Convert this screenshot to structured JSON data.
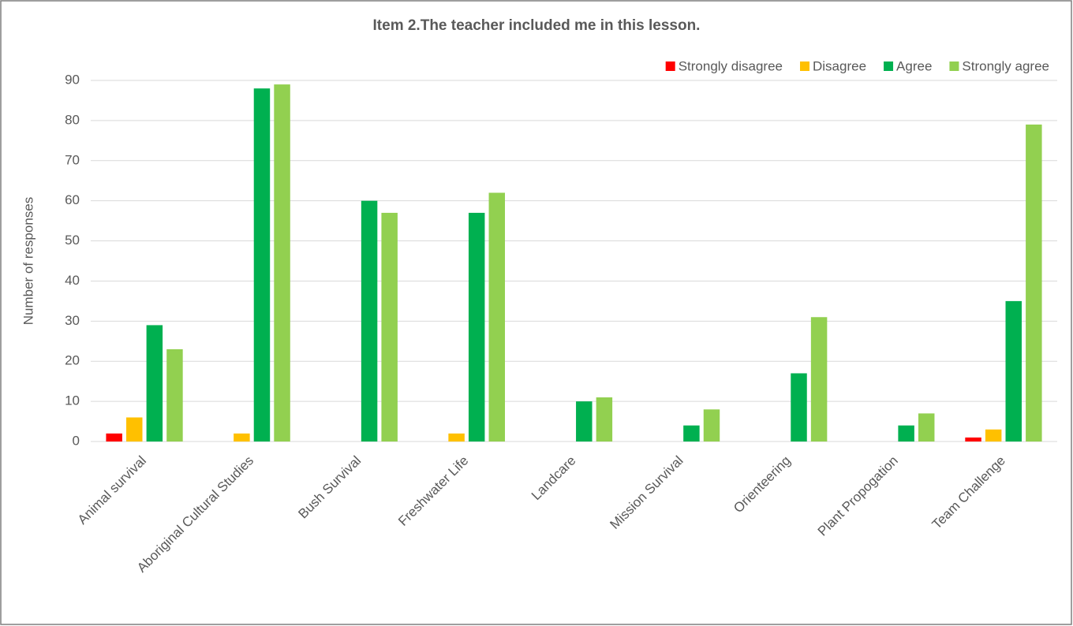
{
  "chart_data": {
    "type": "bar",
    "title": "Item 2.The teacher included me in this lesson.",
    "y_label": "Number of responses",
    "categories": [
      "Animal survival",
      "Aboriginal Cultural Studies",
      "Bush Survival",
      "Freshwater Life",
      "Landcare",
      "Mission Survival",
      "Orienteering",
      "Plant Propogation",
      "Team Challenge"
    ],
    "series": [
      {
        "name": "Strongly disagree",
        "color": "#ff0000",
        "values": [
          2,
          0,
          0,
          0,
          0,
          0,
          0,
          0,
          1
        ]
      },
      {
        "name": "Disagree",
        "color": "#ffc000",
        "values": [
          6,
          2,
          0,
          2,
          0,
          0,
          0,
          0,
          3
        ]
      },
      {
        "name": "Agree",
        "color": "#00b050",
        "values": [
          29,
          88,
          60,
          57,
          10,
          4,
          17,
          4,
          35
        ]
      },
      {
        "name": "Strongly agree",
        "color": "#92d050",
        "values": [
          23,
          89,
          57,
          62,
          11,
          8,
          31,
          7,
          79
        ]
      }
    ],
    "ylim": [
      0,
      90
    ],
    "yticks": [
      0,
      10,
      20,
      30,
      40,
      50,
      60,
      70,
      80,
      90
    ],
    "grid": true,
    "legend": "top-right"
  }
}
